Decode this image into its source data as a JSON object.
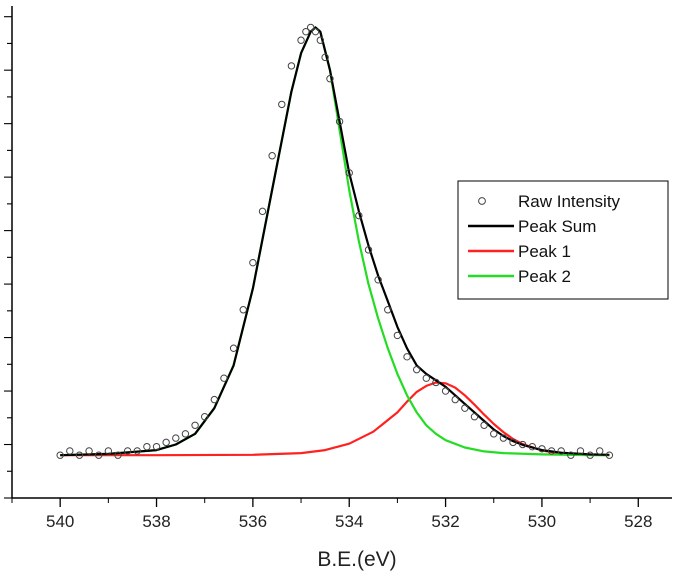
{
  "chart_data": {
    "type": "line",
    "title": "",
    "xlabel": "B.E.(eV)",
    "ylabel": "",
    "xlim": [
      541,
      527.3
    ],
    "x_reversed": true,
    "ylim": [
      -0.1,
      1.05
    ],
    "x_ticks": [
      540,
      538,
      536,
      534,
      532,
      530,
      528
    ],
    "x_tick_labels": [
      "540",
      "538",
      "536",
      "534",
      "532",
      "530",
      "528"
    ],
    "y_tick_labels_shown": false,
    "grid": false,
    "legend_position": "right",
    "series": [
      {
        "name": "Raw Intensity",
        "style": "markers",
        "marker": "open-circle",
        "color": "#444444",
        "x": [
          540.0,
          539.8,
          539.6,
          539.4,
          539.2,
          539.0,
          538.8,
          538.6,
          538.4,
          538.2,
          538.0,
          537.8,
          537.6,
          537.4,
          537.2,
          537.0,
          536.8,
          536.6,
          536.4,
          536.2,
          536.0,
          535.8,
          535.6,
          535.4,
          535.2,
          535.0,
          534.9,
          534.8,
          534.7,
          534.6,
          534.5,
          534.4,
          534.2,
          534.0,
          533.8,
          533.6,
          533.4,
          533.2,
          533.0,
          532.8,
          532.6,
          532.4,
          532.2,
          532.0,
          531.8,
          531.6,
          531.4,
          531.2,
          531.0,
          530.8,
          530.6,
          530.4,
          530.2,
          530.0,
          529.8,
          529.6,
          529.4,
          529.2,
          529.0,
          528.8,
          528.6
        ],
        "y": [
          0.0,
          0.01,
          0.0,
          0.01,
          0.0,
          0.01,
          0.0,
          0.01,
          0.01,
          0.02,
          0.02,
          0.03,
          0.04,
          0.05,
          0.07,
          0.09,
          0.13,
          0.18,
          0.25,
          0.34,
          0.45,
          0.57,
          0.7,
          0.82,
          0.91,
          0.97,
          0.99,
          1.0,
          0.99,
          0.97,
          0.93,
          0.88,
          0.78,
          0.66,
          0.56,
          0.48,
          0.41,
          0.34,
          0.28,
          0.23,
          0.2,
          0.18,
          0.17,
          0.15,
          0.13,
          0.11,
          0.09,
          0.07,
          0.05,
          0.04,
          0.03,
          0.025,
          0.02,
          0.015,
          0.01,
          0.01,
          0.0,
          0.01,
          0.0,
          0.01,
          0.0
        ]
      },
      {
        "name": "Peak Sum",
        "style": "line",
        "color": "#000000",
        "x": [
          540.0,
          539.0,
          538.0,
          537.6,
          537.2,
          536.8,
          536.4,
          536.0,
          535.6,
          535.2,
          535.0,
          534.8,
          534.7,
          534.6,
          534.4,
          534.2,
          534.0,
          533.8,
          533.6,
          533.4,
          533.2,
          533.0,
          532.8,
          532.6,
          532.4,
          532.2,
          532.0,
          531.8,
          531.6,
          531.4,
          531.2,
          531.0,
          530.8,
          530.6,
          530.4,
          530.0,
          529.6,
          529.0,
          528.6
        ],
        "y": [
          0.0,
          0.003,
          0.012,
          0.025,
          0.05,
          0.11,
          0.21,
          0.39,
          0.62,
          0.85,
          0.94,
          0.99,
          1.0,
          0.99,
          0.9,
          0.78,
          0.66,
          0.57,
          0.49,
          0.42,
          0.36,
          0.3,
          0.25,
          0.21,
          0.19,
          0.175,
          0.16,
          0.14,
          0.12,
          0.1,
          0.08,
          0.06,
          0.045,
          0.033,
          0.024,
          0.012,
          0.006,
          0.002,
          0.001
        ]
      },
      {
        "name": "Peak 1",
        "style": "line",
        "color": "#ff2020",
        "x": [
          540.0,
          538.0,
          536.0,
          535.0,
          534.5,
          534.0,
          533.5,
          533.0,
          532.8,
          532.6,
          532.4,
          532.2,
          532.0,
          531.8,
          531.6,
          531.4,
          531.2,
          531.0,
          530.8,
          530.6,
          530.4,
          530.0,
          529.6,
          529.0,
          528.6
        ],
        "y": [
          0.0,
          0.0,
          0.001,
          0.005,
          0.012,
          0.027,
          0.055,
          0.1,
          0.125,
          0.148,
          0.162,
          0.17,
          0.168,
          0.158,
          0.14,
          0.118,
          0.095,
          0.073,
          0.054,
          0.038,
          0.026,
          0.011,
          0.004,
          0.001,
          0.0
        ]
      },
      {
        "name": "Peak 2",
        "style": "line",
        "color": "#22dd22",
        "x": [
          540.0,
          539.0,
          538.0,
          537.6,
          537.2,
          536.8,
          536.4,
          536.0,
          535.6,
          535.2,
          535.0,
          534.8,
          534.7,
          534.6,
          534.4,
          534.2,
          534.0,
          533.8,
          533.6,
          533.4,
          533.2,
          533.0,
          532.8,
          532.6,
          532.4,
          532.2,
          532.0,
          531.6,
          531.2,
          530.8,
          530.0,
          529.0,
          528.6
        ],
        "y": [
          0.0,
          0.003,
          0.012,
          0.025,
          0.05,
          0.11,
          0.21,
          0.39,
          0.62,
          0.85,
          0.94,
          0.99,
          1.0,
          0.99,
          0.9,
          0.76,
          0.62,
          0.5,
          0.4,
          0.32,
          0.25,
          0.19,
          0.14,
          0.1,
          0.07,
          0.05,
          0.035,
          0.018,
          0.009,
          0.005,
          0.002,
          0.0,
          0.0
        ]
      }
    ]
  }
}
